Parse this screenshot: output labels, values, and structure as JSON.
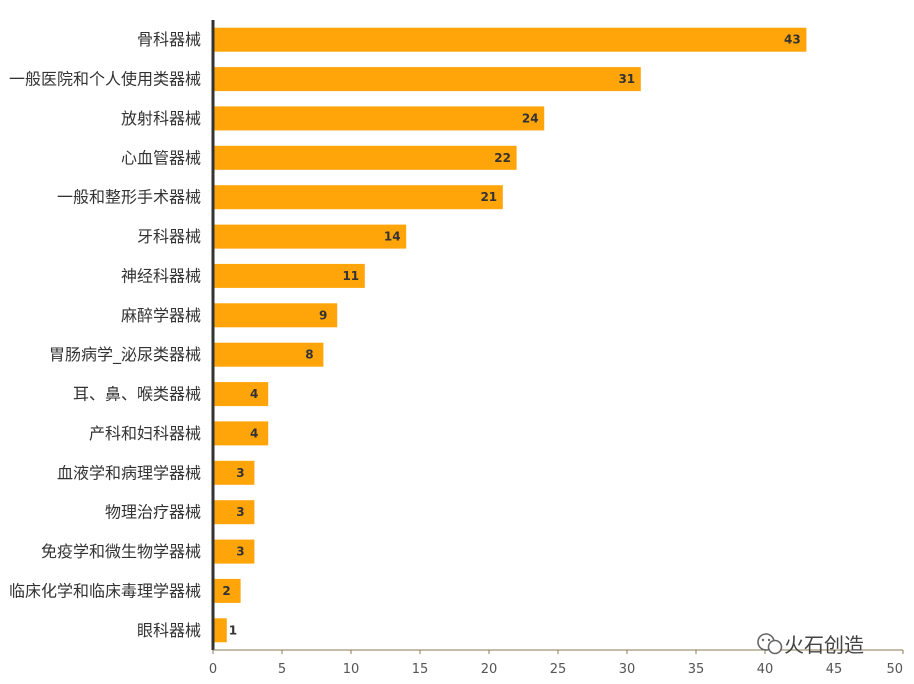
{
  "chart_data": {
    "type": "bar",
    "orientation": "horizontal",
    "categories": [
      "骨科器械",
      "一般医院和个人使用类器械",
      "放射科器械",
      "心血管器械",
      "一般和整形手术器械",
      "牙科器械",
      "神经科器械",
      "麻醉学器械",
      "胃肠病学_泌尿类器械",
      "耳、鼻、喉类器械",
      "产科和妇科器械",
      "血液学和病理学器械",
      "物理治疗器械",
      "免疫学和微生物学器械",
      "临床化学和临床毒理学器械",
      "眼科器械"
    ],
    "values": [
      43,
      31,
      24,
      22,
      21,
      14,
      11,
      9,
      8,
      4,
      4,
      3,
      3,
      3,
      2,
      1
    ],
    "xlim": [
      0,
      50
    ],
    "xticks": [
      0,
      5,
      10,
      15,
      20,
      25,
      30,
      35,
      40,
      45,
      50
    ],
    "data_labels": true,
    "grid": false,
    "colors": {
      "bar": "#FFA509",
      "axis": "#333333",
      "baseline": "#8B7B55"
    }
  },
  "watermark": {
    "icon": "wechat-icon",
    "text": "火石创造"
  }
}
